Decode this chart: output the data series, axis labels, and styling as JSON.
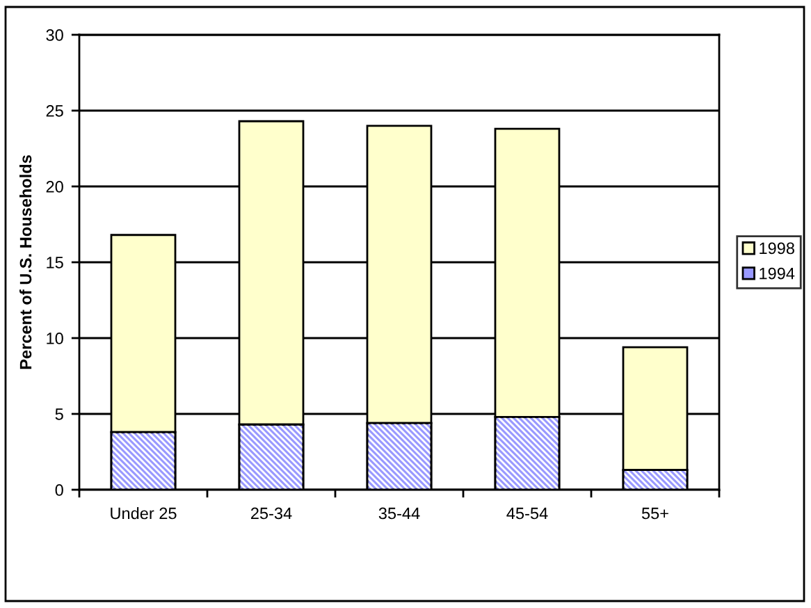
{
  "chart_data": {
    "type": "bar",
    "stacked": true,
    "categories": [
      "Under 25",
      "25-34",
      "35-44",
      "45-54",
      "55+"
    ],
    "ylabel": "Percent of U.S. Households",
    "ylim": [
      0,
      30
    ],
    "yticks": [
      0,
      5,
      10,
      15,
      20,
      25,
      30
    ],
    "grid": "y",
    "legend": "right",
    "series": [
      {
        "name": "1994",
        "color": "#9999ff",
        "values": [
          3.8,
          4.3,
          4.4,
          4.8,
          1.3
        ]
      },
      {
        "name": "1998",
        "color": "#ffffcc",
        "values": [
          13.0,
          20.0,
          19.6,
          19.0,
          8.1
        ]
      }
    ]
  }
}
